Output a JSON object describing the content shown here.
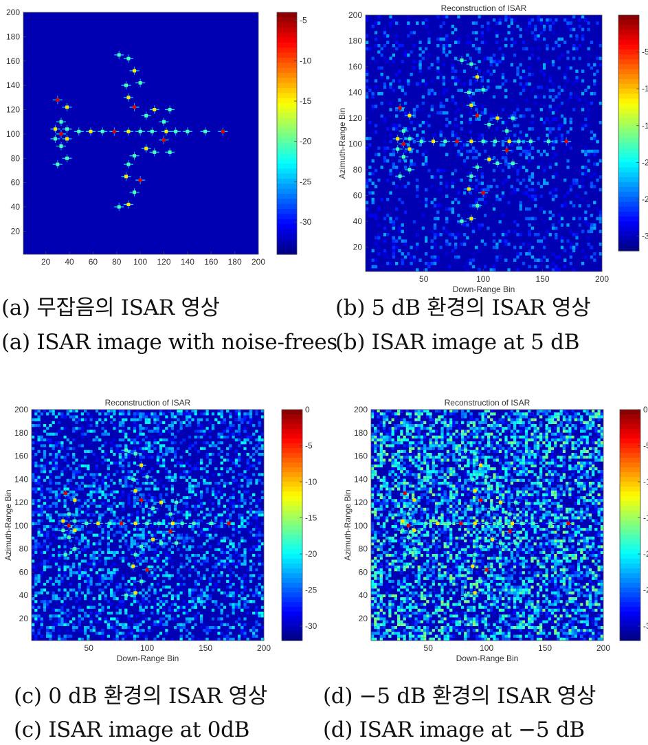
{
  "chart_data": [
    {
      "type": "heatmap",
      "panel": "a",
      "title": "",
      "xlabel": "",
      "ylabel": "",
      "xlim": [
        1,
        200
      ],
      "ylim": [
        1,
        200
      ],
      "xticks": [
        20,
        40,
        60,
        80,
        100,
        120,
        140,
        160,
        180,
        200
      ],
      "yticks": [
        20,
        40,
        60,
        80,
        100,
        120,
        140,
        160,
        180,
        200
      ],
      "colorbar": {
        "min": -34,
        "max": -4,
        "ticks": [
          -5,
          -10,
          -15,
          -20,
          -25,
          -30
        ]
      },
      "noise_level": 0
    },
    {
      "type": "heatmap",
      "panel": "b",
      "title": "Reconstruction of ISAR",
      "xlabel": "Down-Range Bin",
      "ylabel": "Azimuth-Range Bin",
      "xlim": [
        1,
        200
      ],
      "ylim": [
        1,
        200
      ],
      "xticks": [
        50,
        100,
        150,
        200
      ],
      "yticks": [
        20,
        40,
        60,
        80,
        100,
        120,
        140,
        160,
        180,
        200
      ],
      "colorbar": {
        "min": -32,
        "max": 0,
        "ticks": [
          -5,
          -10,
          -15,
          -20,
          -25,
          -30
        ]
      },
      "noise_level": 0.2
    },
    {
      "type": "heatmap",
      "panel": "c",
      "title": "Reconstruction of ISAR",
      "xlabel": "Down-Range Bin",
      "ylabel": "Azimuth-Range Bin",
      "xlim": [
        1,
        200
      ],
      "ylim": [
        1,
        200
      ],
      "xticks": [
        50,
        100,
        150,
        200
      ],
      "yticks": [
        20,
        40,
        60,
        80,
        100,
        120,
        140,
        160,
        180,
        200
      ],
      "colorbar": {
        "min": -32,
        "max": 0,
        "ticks": [
          0,
          -5,
          -10,
          -15,
          -20,
          -25,
          -30
        ]
      },
      "noise_level": 0.45
    },
    {
      "type": "heatmap",
      "panel": "d",
      "title": "Reconstruction of ISAR",
      "xlabel": "Down-Range Bin",
      "ylabel": "Azimuth-Range Bin",
      "xlim": [
        1,
        200
      ],
      "ylim": [
        1,
        200
      ],
      "xticks": [
        50,
        100,
        150,
        200
      ],
      "yticks": [
        20,
        40,
        60,
        80,
        100,
        120,
        140,
        160,
        180,
        200
      ],
      "colorbar": {
        "min": -32,
        "max": 0,
        "ticks": [
          0,
          -5,
          -10,
          -15,
          -20,
          -25,
          -30
        ]
      },
      "noise_level": 0.8
    }
  ],
  "captions": {
    "a_korean": "(a) 무잡음의 ISAR 영상",
    "a_english": "(a) ISAR image with noise-frees",
    "b_korean": "(b) 5 dB 환경의 ISAR 영상",
    "b_english": "(b) ISAR image at 5 dB",
    "c_korean": "(c) 0 dB 환경의 ISAR 영상",
    "c_english": "(c) ISAR image at 0dB",
    "d_korean": "(d) −5 dB 환경의 ISAR 영상",
    "d_english": "(d) ISAR image at −5 dB"
  },
  "target_scatterers": [
    [
      33,
      100
    ],
    [
      33,
      110
    ],
    [
      33,
      90
    ],
    [
      28,
      104
    ],
    [
      28,
      96
    ],
    [
      38,
      104
    ],
    [
      38,
      96
    ],
    [
      30,
      128
    ],
    [
      30,
      75
    ],
    [
      38,
      122
    ],
    [
      38,
      80
    ],
    [
      48,
      102
    ],
    [
      58,
      102
    ],
    [
      68,
      102
    ],
    [
      78,
      102
    ],
    [
      90,
      102
    ],
    [
      100,
      102
    ],
    [
      110,
      102
    ],
    [
      122,
      102
    ],
    [
      140,
      102
    ],
    [
      155,
      102
    ],
    [
      170,
      102
    ],
    [
      82,
      165
    ],
    [
      90,
      162
    ],
    [
      95,
      152
    ],
    [
      100,
      142
    ],
    [
      88,
      140
    ],
    [
      90,
      130
    ],
    [
      95,
      122
    ],
    [
      105,
      115
    ],
    [
      112,
      120
    ],
    [
      125,
      120
    ],
    [
      82,
      40
    ],
    [
      90,
      42
    ],
    [
      95,
      52
    ],
    [
      100,
      62
    ],
    [
      88,
      65
    ],
    [
      90,
      75
    ],
    [
      95,
      82
    ],
    [
      105,
      88
    ],
    [
      112,
      85
    ],
    [
      125,
      85
    ],
    [
      120,
      95
    ],
    [
      120,
      110
    ],
    [
      130,
      102
    ]
  ],
  "colors": {
    "background_low": "#00008f",
    "accent_high": "#a00000"
  }
}
